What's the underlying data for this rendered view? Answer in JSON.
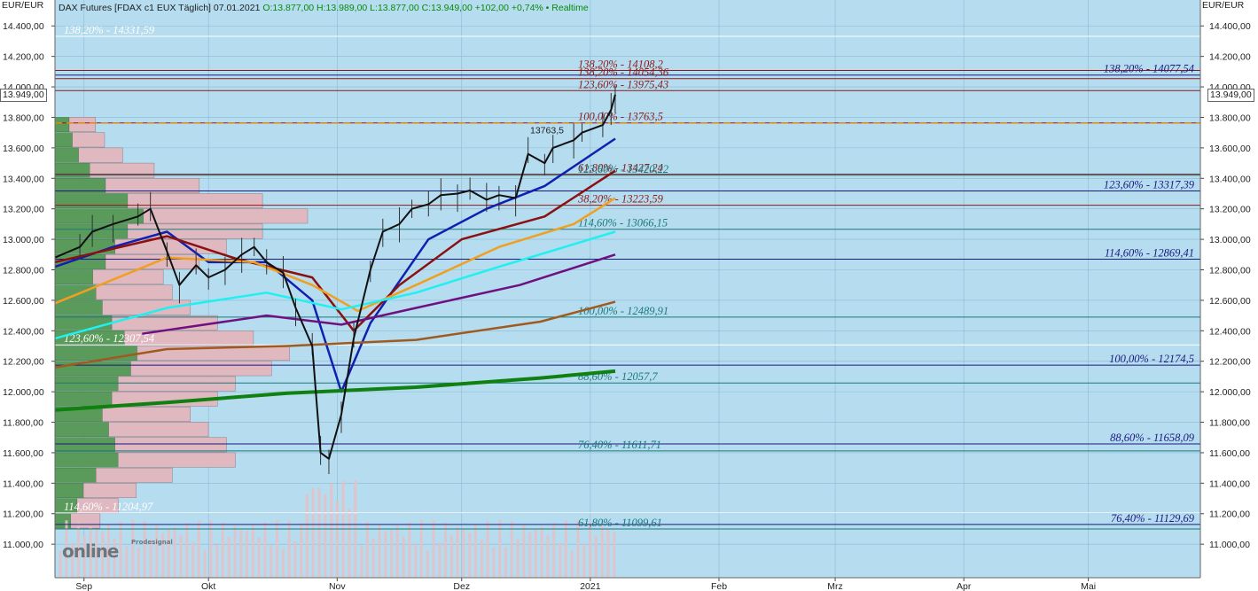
{
  "header": {
    "instrument": "DAX Futures [FDAX c1 EUX Täglich] 07.01.2021",
    "ohlc": "O:13.877,00 H:13.989,00 L:13.877,00 C:13.949,00 +102,00 +0,74% • Realtime"
  },
  "units": {
    "left": "EUR/EUR",
    "right": "EUR/EUR"
  },
  "last_price_label": "13.949,00",
  "logo": {
    "text": "online",
    "sub": "Prodesignal"
  },
  "colors": {
    "plot_bg": "#b5dcef",
    "grid": "#8fb9d2",
    "price": "#111111",
    "ema_blue": "#1020b0",
    "ema_darkred": "#8b1010",
    "ema_orange": "#f0a020",
    "ema_cyan": "#20f0f0",
    "ema_purple": "#701080",
    "ema_brown": "#a05a20",
    "ema_green": "#108010",
    "fib_teal": "#1a7a7a",
    "fib_navy": "#1a1a80",
    "fib_darkred": "#8b1a1a",
    "fib_white": "#ffffff"
  },
  "chart_data": {
    "type": "line",
    "y_axis": {
      "range": [
        10780,
        14570
      ],
      "ticks": [
        11000,
        11200,
        11400,
        11600,
        11800,
        12000,
        12200,
        12400,
        12600,
        12800,
        13000,
        13200,
        13400,
        13600,
        13800,
        14000,
        14200,
        14400
      ],
      "tick_labels": [
        "11.000,00",
        "11.200,00",
        "11.400,00",
        "11.600,00",
        "11.800,00",
        "12.000,00",
        "12.200,00",
        "12.400,00",
        "12.600,00",
        "12.800,00",
        "13.000,00",
        "13.200,00",
        "13.400,00",
        "13.600,00",
        "13.800,00",
        "14.000,00",
        "14.200,00",
        "14.400,00"
      ]
    },
    "x_axis": {
      "start": "2020-08-25",
      "end": "2021-05-28",
      "ticks": [
        {
          "date": "2020-09-01",
          "label": "Sep"
        },
        {
          "date": "2020-10-01",
          "label": "Okt"
        },
        {
          "date": "2020-11-01",
          "label": "Nov"
        },
        {
          "date": "2020-12-01",
          "label": "Dez"
        },
        {
          "date": "2021-01-01",
          "label": "2021"
        },
        {
          "date": "2021-02-01",
          "label": "Feb"
        },
        {
          "date": "2021-03-01",
          "label": "Mrz"
        },
        {
          "date": "2021-04-01",
          "label": "Apr"
        },
        {
          "date": "2021-05-01",
          "label": "Mai"
        }
      ]
    },
    "price_series": {
      "name": "DAX Futures",
      "points": [
        [
          "2020-08-25",
          12880
        ],
        [
          "2020-08-31",
          12950
        ],
        [
          "2020-09-03",
          13050
        ],
        [
          "2020-09-08",
          13100
        ],
        [
          "2020-09-14",
          13150
        ],
        [
          "2020-09-17",
          13200
        ],
        [
          "2020-09-21",
          12920
        ],
        [
          "2020-09-24",
          12700
        ],
        [
          "2020-09-28",
          12830
        ],
        [
          "2020-10-01",
          12750
        ],
        [
          "2020-10-05",
          12800
        ],
        [
          "2020-10-09",
          12900
        ],
        [
          "2020-10-12",
          12950
        ],
        [
          "2020-10-15",
          12850
        ],
        [
          "2020-10-19",
          12780
        ],
        [
          "2020-10-22",
          12550
        ],
        [
          "2020-10-26",
          12300
        ],
        [
          "2020-10-28",
          11600
        ],
        [
          "2020-10-30",
          11560
        ],
        [
          "2020-11-02",
          11850
        ],
        [
          "2020-11-05",
          12350
        ],
        [
          "2020-11-09",
          12800
        ],
        [
          "2020-11-12",
          13050
        ],
        [
          "2020-11-16",
          13100
        ],
        [
          "2020-11-19",
          13200
        ],
        [
          "2020-11-23",
          13230
        ],
        [
          "2020-11-26",
          13290
        ],
        [
          "2020-11-30",
          13300
        ],
        [
          "2020-12-03",
          13320
        ],
        [
          "2020-12-07",
          13260
        ],
        [
          "2020-12-10",
          13290
        ],
        [
          "2020-12-14",
          13270
        ],
        [
          "2020-12-17",
          13560
        ],
        [
          "2020-12-21",
          13500
        ],
        [
          "2020-12-23",
          13600
        ],
        [
          "2020-12-28",
          13650
        ],
        [
          "2020-12-30",
          13700
        ],
        [
          "2021-01-04",
          13750
        ],
        [
          "2021-01-06",
          13850
        ],
        [
          "2021-01-07",
          13949
        ]
      ]
    },
    "moving_averages": [
      {
        "color": "ema_blue",
        "points": [
          [
            "2020-08-25",
            12820
          ],
          [
            "2020-09-08",
            12950
          ],
          [
            "2020-09-21",
            13050
          ],
          [
            "2020-10-01",
            12850
          ],
          [
            "2020-10-15",
            12850
          ],
          [
            "2020-10-26",
            12600
          ],
          [
            "2020-11-02",
            12000
          ],
          [
            "2020-11-09",
            12450
          ],
          [
            "2020-11-23",
            13000
          ],
          [
            "2020-12-07",
            13200
          ],
          [
            "2020-12-21",
            13350
          ],
          [
            "2021-01-07",
            13660
          ]
        ]
      },
      {
        "color": "ema_darkred",
        "points": [
          [
            "2020-08-25",
            12850
          ],
          [
            "2020-09-21",
            13020
          ],
          [
            "2020-10-08",
            12870
          ],
          [
            "2020-10-26",
            12750
          ],
          [
            "2020-11-05",
            12400
          ],
          [
            "2020-11-16",
            12700
          ],
          [
            "2020-12-01",
            13000
          ],
          [
            "2020-12-21",
            13150
          ],
          [
            "2021-01-07",
            13450
          ]
        ]
      },
      {
        "color": "ema_orange",
        "points": [
          [
            "2020-08-25",
            12580
          ],
          [
            "2020-09-21",
            12880
          ],
          [
            "2020-10-12",
            12850
          ],
          [
            "2020-10-26",
            12700
          ],
          [
            "2020-11-06",
            12530
          ],
          [
            "2020-11-20",
            12700
          ],
          [
            "2020-12-10",
            12950
          ],
          [
            "2020-12-28",
            13100
          ],
          [
            "2021-01-07",
            13270
          ]
        ]
      },
      {
        "color": "ema_cyan",
        "points": [
          [
            "2020-08-25",
            12350
          ],
          [
            "2020-09-21",
            12550
          ],
          [
            "2020-10-15",
            12650
          ],
          [
            "2020-11-02",
            12540
          ],
          [
            "2020-11-20",
            12650
          ],
          [
            "2020-12-10",
            12820
          ],
          [
            "2021-01-07",
            13050
          ]
        ]
      },
      {
        "color": "ema_purple",
        "points": [
          [
            "2020-09-15",
            12380
          ],
          [
            "2020-10-15",
            12500
          ],
          [
            "2020-11-02",
            12440
          ],
          [
            "2020-11-20",
            12550
          ],
          [
            "2020-12-15",
            12700
          ],
          [
            "2021-01-07",
            12900
          ]
        ]
      },
      {
        "color": "ema_brown",
        "points": [
          [
            "2020-08-25",
            12160
          ],
          [
            "2020-09-21",
            12280
          ],
          [
            "2020-10-20",
            12300
          ],
          [
            "2020-11-20",
            12340
          ],
          [
            "2020-12-20",
            12460
          ],
          [
            "2021-01-07",
            12590
          ]
        ]
      },
      {
        "color": "ema_green",
        "points": [
          [
            "2020-08-25",
            11880
          ],
          [
            "2020-09-21",
            11930
          ],
          [
            "2020-10-20",
            11990
          ],
          [
            "2020-11-20",
            12030
          ],
          [
            "2020-12-20",
            12090
          ],
          [
            "2021-01-07",
            12135
          ]
        ]
      }
    ],
    "horizontal_levels": [
      {
        "value": 14331.59,
        "label": "138,20% - 14331,59",
        "color": "fib_white",
        "label_side": "left"
      },
      {
        "value": 14108.2,
        "label": "138,20% - 14108,2",
        "color": "fib_darkred",
        "label_side": "mid"
      },
      {
        "value": 14077.54,
        "label": "138,20% - 14077,54",
        "color": "fib_navy",
        "label_side": "right"
      },
      {
        "value": 14054.36,
        "label": "138,20% - 14054,36",
        "color": "fib_darkred",
        "label_side": "mid"
      },
      {
        "value": 13975.43,
        "label": "123,60% - 13975,43",
        "color": "fib_darkred",
        "label_side": "mid"
      },
      {
        "value": 13763.5,
        "label": "100,00% - 13763,5",
        "color": "fib_darkred",
        "label_side": "mid"
      },
      {
        "value": 13427.24,
        "label": "61,80% - 13427,24",
        "color": "fib_darkred",
        "label_side": "mid"
      },
      {
        "value": 13420.22,
        "label": "123,60% - 13420,22",
        "color": "fib_teal",
        "label_side": "mid"
      },
      {
        "value": 13317.39,
        "label": "123,60% - 13317,39",
        "color": "fib_navy",
        "label_side": "right"
      },
      {
        "value": 13223.59,
        "label": "38,20% - 13223,59",
        "color": "fib_darkred",
        "label_side": "mid"
      },
      {
        "value": 13066.15,
        "label": "114,60% - 13066,15",
        "color": "fib_teal",
        "label_side": "mid"
      },
      {
        "value": 12869.41,
        "label": "114,60% - 12869,41",
        "color": "fib_navy",
        "label_side": "right"
      },
      {
        "value": 12489.91,
        "label": "100,00% - 12489,91",
        "color": "fib_teal",
        "label_side": "mid"
      },
      {
        "value": 12307.54,
        "label": "123,60% - 12307,54",
        "color": "fib_white",
        "label_side": "left"
      },
      {
        "value": 12174.5,
        "label": "100,00% - 12174,5",
        "color": "fib_navy",
        "label_side": "right"
      },
      {
        "value": 12057.7,
        "label": "88,60% - 12057,7",
        "color": "fib_teal",
        "label_side": "mid"
      },
      {
        "value": 11658.09,
        "label": "88,60% - 11658,09",
        "color": "fib_navy",
        "label_side": "right"
      },
      {
        "value": 11611.71,
        "label": "76,40% - 11611,71",
        "color": "fib_teal",
        "label_side": "mid"
      },
      {
        "value": 11204.97,
        "label": "114,60% - 11204,97",
        "color": "fib_white",
        "label_side": "left"
      },
      {
        "value": 11129.69,
        "label": "76,40% - 11129,69",
        "color": "fib_navy",
        "label_side": "right"
      },
      {
        "value": 11099.61,
        "label": "61,80% - 11099,61",
        "color": "fib_teal",
        "label_side": "mid"
      }
    ],
    "annotations": [
      {
        "value": 13763.5,
        "label": "13763,5"
      }
    ],
    "volume_profile": {
      "rows": [
        {
          "price": 13750,
          "volume": 45
        },
        {
          "price": 13650,
          "volume": 55
        },
        {
          "price": 13550,
          "volume": 75
        },
        {
          "price": 13450,
          "volume": 110
        },
        {
          "price": 13350,
          "volume": 160
        },
        {
          "price": 13250,
          "volume": 230
        },
        {
          "price": 13150,
          "volume": 280
        },
        {
          "price": 13050,
          "volume": 230
        },
        {
          "price": 12950,
          "volume": 190
        },
        {
          "price": 12850,
          "volume": 160
        },
        {
          "price": 12750,
          "volume": 120
        },
        {
          "price": 12650,
          "volume": 130
        },
        {
          "price": 12550,
          "volume": 150
        },
        {
          "price": 12450,
          "volume": 180
        },
        {
          "price": 12350,
          "volume": 220
        },
        {
          "price": 12250,
          "volume": 260
        },
        {
          "price": 12150,
          "volume": 240
        },
        {
          "price": 12050,
          "volume": 200
        },
        {
          "price": 11950,
          "volume": 180
        },
        {
          "price": 11850,
          "volume": 150
        },
        {
          "price": 11750,
          "volume": 170
        },
        {
          "price": 11650,
          "volume": 190
        },
        {
          "price": 11550,
          "volume": 200
        },
        {
          "price": 11450,
          "volume": 130
        },
        {
          "price": 11350,
          "volume": 90
        },
        {
          "price": 11250,
          "volume": 70
        },
        {
          "price": 11150,
          "volume": 50
        }
      ],
      "value_area_color": "#5a9a5a",
      "other_color": "#e0b8c0"
    }
  }
}
